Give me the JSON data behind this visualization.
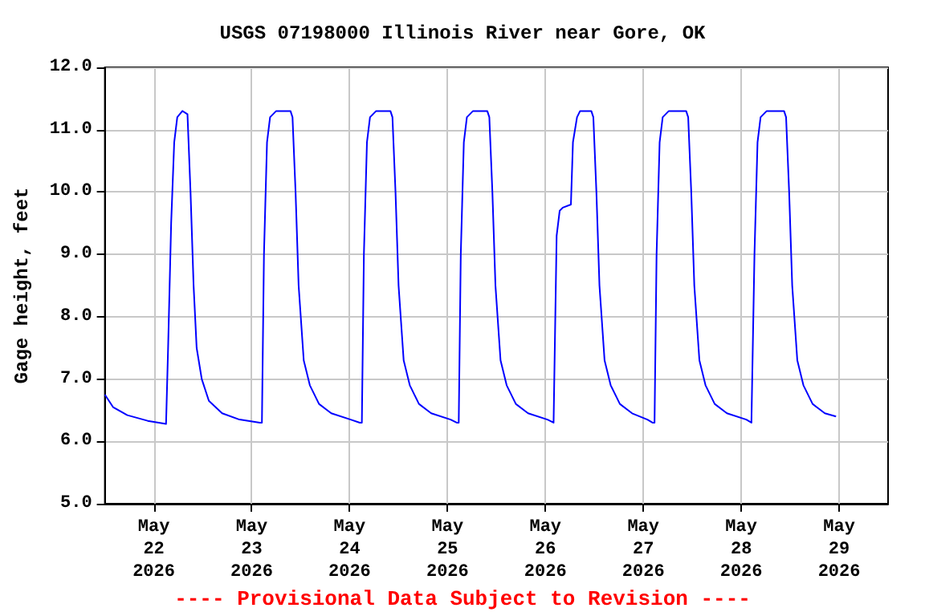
{
  "chart_data": {
    "type": "line",
    "title": "USGS 07198000 Illinois River near Gore, OK",
    "ylabel": "Gage height, feet",
    "annotations": [
      "---- Provisional Data Subject to Revision ----"
    ],
    "grid": true,
    "marker": "none",
    "line_style": "solid",
    "xlim": [
      "2026-05-21T12:00",
      "2026-05-29T12:00"
    ],
    "xticks": [
      {
        "value": "2026-05-22",
        "label": "May\n22\n2026"
      },
      {
        "value": "2026-05-23",
        "label": "May\n23\n2026"
      },
      {
        "value": "2026-05-24",
        "label": "May\n24\n2026"
      },
      {
        "value": "2026-05-25",
        "label": "May\n25\n2026"
      },
      {
        "value": "2026-05-26",
        "label": "May\n26\n2026"
      },
      {
        "value": "2026-05-27",
        "label": "May\n27\n2026"
      },
      {
        "value": "2026-05-28",
        "label": "May\n28\n2026"
      },
      {
        "value": "2026-05-29",
        "label": "May\n29\n2026"
      }
    ],
    "ylim": [
      5,
      12
    ],
    "yticks": [
      {
        "value": 5,
        "label": "5.0"
      },
      {
        "value": 6,
        "label": "6.0"
      },
      {
        "value": 7,
        "label": "7.0"
      },
      {
        "value": 8,
        "label": "8.0"
      },
      {
        "value": 9,
        "label": "9.0"
      },
      {
        "value": 10,
        "label": "10.0"
      },
      {
        "value": 11,
        "label": "11.0"
      },
      {
        "value": 12,
        "label": "12.0"
      }
    ],
    "x": [
      "2026-05-21T12:00",
      "2026-05-21T14:00",
      "2026-05-21T17:30",
      "2026-05-21T22:30",
      "2026-05-22T03:00",
      "2026-05-22T03:30",
      "2026-05-22T04:15",
      "2026-05-22T05:00",
      "2026-05-22T05:45",
      "2026-05-22T07:00",
      "2026-05-22T08:15",
      "2026-05-22T09:00",
      "2026-05-22T09:45",
      "2026-05-22T10:30",
      "2026-05-22T11:45",
      "2026-05-22T13:30",
      "2026-05-22T16:45",
      "2026-05-22T21:00",
      "2026-05-23T02:00",
      "2026-05-23T02:30",
      "2026-05-23T03:00",
      "2026-05-23T03:45",
      "2026-05-23T04:30",
      "2026-05-23T06:00",
      "2026-05-23T09:30",
      "2026-05-23T10:00",
      "2026-05-23T10:45",
      "2026-05-23T11:30",
      "2026-05-23T12:45",
      "2026-05-23T14:15",
      "2026-05-23T16:30",
      "2026-05-23T19:30",
      "2026-05-24T00:15",
      "2026-05-24T02:30",
      "2026-05-24T03:00",
      "2026-05-24T03:30",
      "2026-05-24T04:15",
      "2026-05-24T05:00",
      "2026-05-24T06:30",
      "2026-05-24T10:00",
      "2026-05-24T10:30",
      "2026-05-24T11:15",
      "2026-05-24T12:00",
      "2026-05-24T13:15",
      "2026-05-24T14:45",
      "2026-05-24T17:00",
      "2026-05-24T20:00",
      "2026-05-25T00:45",
      "2026-05-25T02:15",
      "2026-05-25T02:45",
      "2026-05-25T03:15",
      "2026-05-25T04:00",
      "2026-05-25T04:45",
      "2026-05-25T06:15",
      "2026-05-25T09:45",
      "2026-05-25T10:15",
      "2026-05-25T11:00",
      "2026-05-25T11:45",
      "2026-05-25T13:00",
      "2026-05-25T14:30",
      "2026-05-25T16:45",
      "2026-05-25T19:45",
      "2026-05-26T00:30",
      "2026-05-26T02:00",
      "2026-05-26T02:15",
      "2026-05-26T02:45",
      "2026-05-26T03:30",
      "2026-05-26T04:15",
      "2026-05-26T06:15",
      "2026-05-26T06:45",
      "2026-05-26T07:45",
      "2026-05-26T08:30",
      "2026-05-26T11:15",
      "2026-05-26T11:45",
      "2026-05-26T12:30",
      "2026-05-26T13:15",
      "2026-05-26T14:30",
      "2026-05-26T16:00",
      "2026-05-26T18:15",
      "2026-05-26T21:15",
      "2026-05-27T01:00",
      "2026-05-27T02:15",
      "2026-05-27T02:45",
      "2026-05-27T03:15",
      "2026-05-27T04:00",
      "2026-05-27T04:45",
      "2026-05-27T06:15",
      "2026-05-27T10:30",
      "2026-05-27T11:00",
      "2026-05-27T11:45",
      "2026-05-27T12:30",
      "2026-05-27T13:45",
      "2026-05-27T15:15",
      "2026-05-27T17:30",
      "2026-05-27T20:30",
      "2026-05-28T01:15",
      "2026-05-28T02:30",
      "2026-05-28T02:45",
      "2026-05-28T03:15",
      "2026-05-28T04:00",
      "2026-05-28T04:45",
      "2026-05-28T06:15",
      "2026-05-28T10:30",
      "2026-05-28T11:00",
      "2026-05-28T11:45",
      "2026-05-28T12:30",
      "2026-05-28T13:45",
      "2026-05-28T15:15",
      "2026-05-28T17:30",
      "2026-05-28T20:30",
      "2026-05-28T23:15"
    ],
    "series": [
      {
        "color": "#0000ff",
        "values": [
          6.75,
          6.55,
          6.42,
          6.33,
          6.28,
          7.5,
          9.5,
          10.8,
          11.2,
          11.3,
          11.25,
          10.0,
          8.5,
          7.5,
          7.0,
          6.65,
          6.45,
          6.35,
          6.3,
          6.3,
          9.0,
          10.8,
          11.2,
          11.3,
          11.3,
          11.2,
          10.0,
          8.5,
          7.3,
          6.9,
          6.6,
          6.45,
          6.35,
          6.3,
          6.3,
          9.0,
          10.8,
          11.2,
          11.3,
          11.3,
          11.2,
          10.0,
          8.5,
          7.3,
          6.9,
          6.6,
          6.45,
          6.35,
          6.3,
          6.3,
          9.0,
          10.8,
          11.2,
          11.3,
          11.3,
          11.2,
          10.0,
          8.5,
          7.3,
          6.9,
          6.6,
          6.45,
          6.35,
          6.3,
          6.3,
          9.3,
          9.7,
          9.75,
          9.8,
          10.8,
          11.2,
          11.3,
          11.3,
          11.2,
          10.0,
          8.5,
          7.3,
          6.9,
          6.6,
          6.45,
          6.35,
          6.3,
          6.3,
          9.0,
          10.8,
          11.2,
          11.3,
          11.3,
          11.2,
          10.0,
          8.5,
          7.3,
          6.9,
          6.6,
          6.45,
          6.35,
          6.3,
          6.3,
          9.0,
          10.8,
          11.2,
          11.3,
          11.3,
          11.2,
          10.0,
          8.5,
          7.3,
          6.9,
          6.6,
          6.45,
          6.4
        ]
      }
    ]
  }
}
